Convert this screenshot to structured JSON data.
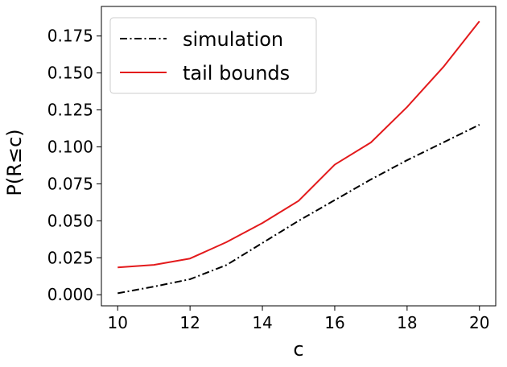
{
  "chart_data": {
    "type": "line",
    "xlabel": "c",
    "ylabel": "P(R≤c)",
    "xlim": [
      9.55,
      20.45
    ],
    "ylim": [
      -0.0075,
      0.195
    ],
    "xticks": [
      10,
      12,
      14,
      16,
      18,
      20
    ],
    "xtick_labels": [
      "10",
      "12",
      "14",
      "16",
      "18",
      "20"
    ],
    "yticks": [
      0.0,
      0.025,
      0.05,
      0.075,
      0.1,
      0.125,
      0.15,
      0.175
    ],
    "ytick_labels": [
      "0.000",
      "0.025",
      "0.050",
      "0.075",
      "0.100",
      "0.125",
      "0.150",
      "0.175"
    ],
    "grid": false,
    "legend_position": "top-left",
    "x": [
      10,
      11,
      12,
      13,
      14,
      15,
      16,
      17,
      18,
      19,
      20
    ],
    "series": [
      {
        "name": "simulation",
        "color": "#000000",
        "dash": "dashdot",
        "values": [
          0.001,
          0.0055,
          0.0105,
          0.02,
          0.035,
          0.05,
          0.064,
          0.078,
          0.091,
          0.103,
          0.115
        ]
      },
      {
        "name": "tail bounds",
        "color": "#e31a1c",
        "dash": "solid",
        "values": [
          0.0185,
          0.0202,
          0.0245,
          0.0355,
          0.0485,
          0.0635,
          0.088,
          0.103,
          0.127,
          0.154,
          0.185
        ]
      }
    ]
  }
}
